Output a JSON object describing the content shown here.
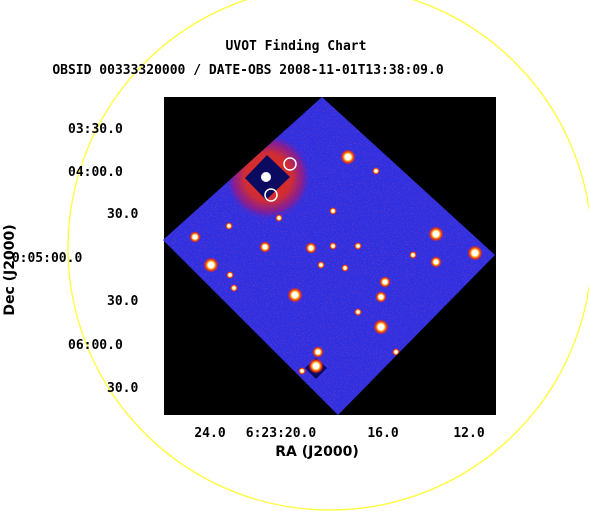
{
  "chart_data": {
    "type": "scatter",
    "title": "UVOT Finding Chart",
    "subtitle": "OBSID 00333320000 / DATE-OBS 2008-11-01T13:38:09.0",
    "xlabel": "RA (J2000)",
    "ylabel": "Dec (J2000)",
    "x_ticks": [
      "24.0",
      "6:23:20.0",
      "16.0",
      "12.0"
    ],
    "y_ticks": [
      "03:30.0",
      "04:00.0",
      "30.0",
      "-0:05:00.0",
      "30.0",
      "06:00.0",
      "30.0"
    ],
    "colors": {
      "field_circle": "#ffff33",
      "image_bg": "#3030e0",
      "image_outside": "#000000",
      "marker": "#ffffff"
    }
  }
}
